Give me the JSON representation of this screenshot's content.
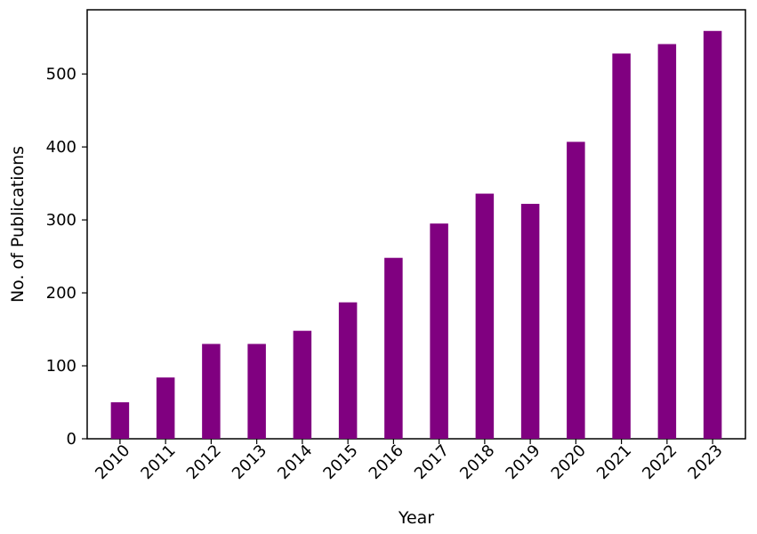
{
  "chart_data": {
    "type": "bar",
    "title": "",
    "xlabel": "Year",
    "ylabel": "No. of Publications",
    "categories": [
      "2010",
      "2011",
      "2012",
      "2013",
      "2014",
      "2015",
      "2016",
      "2017",
      "2018",
      "2019",
      "2020",
      "2021",
      "2022",
      "2023"
    ],
    "values": [
      50,
      84,
      130,
      130,
      148,
      187,
      248,
      295,
      336,
      322,
      407,
      528,
      541,
      559
    ],
    "ylim": [
      0,
      588
    ],
    "yticks": [
      0,
      100,
      200,
      300,
      400,
      500
    ],
    "bar_color": "#800080",
    "grid": false,
    "legend": "none"
  }
}
